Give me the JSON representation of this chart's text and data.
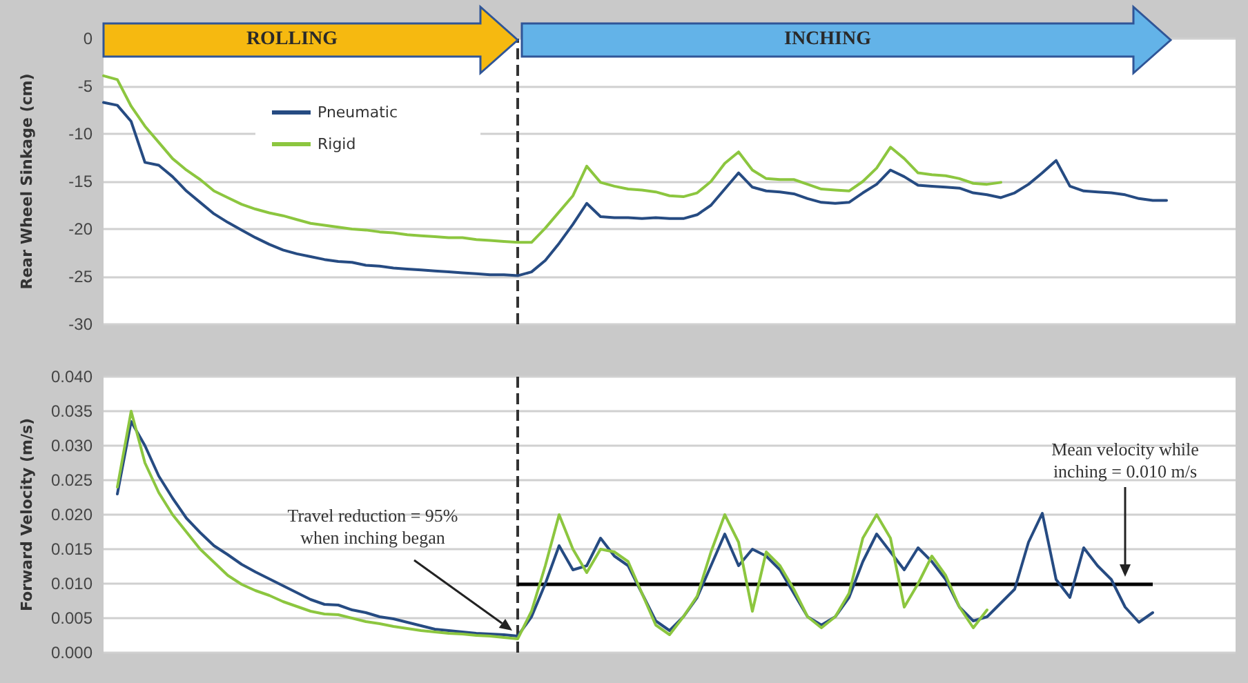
{
  "chart_data": [
    {
      "type": "line",
      "ylabel": "Rear Wheel Sinkage (cm)",
      "categories": [
        null,
        null,
        null,
        null,
        null,
        null,
        null,
        null,
        null,
        null,
        null,
        null,
        null,
        null,
        null,
        null,
        null,
        null,
        null,
        null,
        null,
        null,
        null,
        null,
        null,
        null,
        null,
        null,
        null,
        null,
        null,
        null,
        null,
        null,
        null,
        null,
        null,
        null,
        null,
        null,
        null,
        null,
        null,
        null,
        null,
        null,
        null,
        null,
        null,
        null,
        null,
        null,
        null,
        null,
        null,
        null,
        null,
        null,
        null,
        null,
        null,
        null,
        null,
        null,
        null,
        null,
        null,
        null,
        null,
        null,
        null,
        null,
        null,
        null,
        null,
        null,
        null,
        null,
        null,
        null,
        null,
        null,
        null
      ],
      "series": [
        {
          "name": "Pneumatic",
          "color": "#264b82",
          "values": [
            -6.7,
            -7.0,
            -8.7,
            -13.0,
            -13.3,
            -14.5,
            -16.0,
            -17.2,
            -18.4,
            -19.3,
            -20.1,
            -20.9,
            -21.6,
            -22.2,
            -22.6,
            -22.9,
            -23.2,
            -23.4,
            -23.5,
            -23.8,
            -23.9,
            -24.1,
            -24.2,
            -24.3,
            -24.4,
            -24.5,
            -24.6,
            -24.7,
            -24.8,
            -24.8,
            -24.9,
            -24.5,
            -23.3,
            -21.5,
            -19.5,
            -17.3,
            -18.7,
            -18.8,
            -18.8,
            -18.9,
            -18.8,
            -18.9,
            -18.9,
            -18.5,
            -17.5,
            -15.8,
            -14.1,
            -15.6,
            -16.0,
            -16.1,
            -16.3,
            -16.8,
            -17.2,
            -17.3,
            -17.2,
            -16.2,
            -15.3,
            -13.8,
            -14.5,
            -15.4,
            -15.5,
            -15.6,
            -15.7,
            -16.2,
            -16.4,
            -16.7,
            -16.2,
            -15.3,
            -14.1,
            -12.8,
            -15.5,
            -16.0,
            -16.1,
            -16.2,
            -16.4,
            -16.8,
            -17.0,
            -17.0,
            null,
            null,
            null,
            null,
            null
          ]
        },
        {
          "name": "Rigid",
          "color": "#8cc63f",
          "values": [
            -3.9,
            -4.3,
            -7.1,
            -9.2,
            -10.9,
            -12.6,
            -13.8,
            -14.8,
            -16.0,
            -16.7,
            -17.4,
            -17.9,
            -18.3,
            -18.6,
            -19.0,
            -19.4,
            -19.6,
            -19.8,
            -20.0,
            -20.1,
            -20.3,
            -20.4,
            -20.6,
            -20.7,
            -20.8,
            -20.9,
            -20.9,
            -21.1,
            -21.2,
            -21.3,
            -21.4,
            -21.4,
            -19.9,
            -18.2,
            -16.5,
            -13.4,
            -15.1,
            -15.5,
            -15.8,
            -15.9,
            -16.1,
            -16.5,
            -16.6,
            -16.2,
            -15.0,
            -13.1,
            -11.9,
            -13.8,
            -14.7,
            -14.8,
            -14.8,
            -15.3,
            -15.8,
            -15.9,
            -16.0,
            -15.0,
            -13.6,
            -11.4,
            -12.6,
            -14.1,
            -14.3,
            -14.4,
            -14.7,
            -15.2,
            -15.3,
            -15.1,
            null,
            null,
            null,
            null,
            null,
            null,
            null,
            null,
            null,
            null,
            null,
            null,
            null,
            null,
            null,
            null,
            null
          ]
        }
      ],
      "ylim": [
        -30,
        0
      ],
      "yticks": [
        -30,
        -25,
        -20,
        -15,
        -10,
        -5,
        0
      ],
      "grid": "y",
      "legend": "top left",
      "tick_labels": "y",
      "annotations": [
        "ROLLING",
        "INCHING"
      ]
    },
    {
      "type": "line",
      "ylabel": "Forward Velocity (m/s)",
      "categories": [
        null,
        null,
        null,
        null,
        null,
        null,
        null,
        null,
        null,
        null,
        null,
        null,
        null,
        null,
        null,
        null,
        null,
        null,
        null,
        null,
        null,
        null,
        null,
        null,
        null,
        null,
        null,
        null,
        null,
        null,
        null,
        null,
        null,
        null,
        null,
        null,
        null,
        null,
        null,
        null,
        null,
        null,
        null,
        null,
        null,
        null,
        null,
        null,
        null,
        null,
        null,
        null,
        null,
        null,
        null,
        null,
        null,
        null,
        null,
        null,
        null,
        null,
        null,
        null,
        null,
        null,
        null,
        null,
        null,
        null,
        null,
        null,
        null,
        null,
        null,
        null,
        null,
        null,
        null,
        null,
        null,
        null,
        null
      ],
      "series": [
        {
          "color": "#264b82",
          "values": [
            null,
            0.023,
            0.0335,
            0.03,
            0.0256,
            0.0224,
            0.0195,
            0.0174,
            0.0155,
            0.0142,
            0.0128,
            0.0117,
            0.0107,
            0.0097,
            0.0087,
            0.0077,
            0.007,
            0.0069,
            0.0062,
            0.0058,
            0.0052,
            0.0049,
            0.0044,
            0.0039,
            0.0034,
            0.0032,
            0.003,
            0.0028,
            0.0027,
            0.0026,
            0.0024,
            0.0052,
            0.01,
            0.0155,
            0.012,
            0.0126,
            0.0166,
            0.014,
            0.0126,
            0.0086,
            0.0046,
            0.0032,
            0.0052,
            0.008,
            0.0126,
            0.0172,
            0.0126,
            0.015,
            0.014,
            0.012,
            0.0086,
            0.0052,
            0.004,
            0.0052,
            0.008,
            0.0132,
            0.0172,
            0.0146,
            0.012,
            0.0152,
            0.0132,
            0.0106,
            0.0066,
            0.0046,
            0.0052,
            0.0072,
            0.0092,
            0.016,
            0.0202,
            0.0106,
            0.008,
            0.0152,
            0.0126,
            0.0106,
            0.0066,
            0.0044,
            0.0058,
            null,
            null,
            null,
            null,
            null,
            null
          ]
        },
        {
          "color": "#8cc63f",
          "values": [
            null,
            0.024,
            0.035,
            0.0275,
            0.0232,
            0.02,
            0.0175,
            0.015,
            0.0131,
            0.0112,
            0.0099,
            0.009,
            0.0083,
            0.0074,
            0.0067,
            0.006,
            0.0056,
            0.0055,
            0.005,
            0.0045,
            0.0042,
            0.0038,
            0.0035,
            0.0032,
            0.003,
            0.0028,
            0.0027,
            0.0025,
            0.0024,
            0.0022,
            0.002,
            0.006,
            0.0126,
            0.02,
            0.015,
            0.0116,
            0.015,
            0.0146,
            0.0132,
            0.0086,
            0.004,
            0.0026,
            0.0052,
            0.0082,
            0.0146,
            0.02,
            0.016,
            0.006,
            0.0146,
            0.0126,
            0.0092,
            0.0052,
            0.0036,
            0.0052,
            0.0086,
            0.0166,
            0.02,
            0.0166,
            0.0066,
            0.01,
            0.014,
            0.0112,
            0.0066,
            0.0036,
            0.0062,
            null,
            null,
            null,
            null,
            null,
            null,
            null,
            null,
            null,
            null,
            null,
            null,
            null,
            null,
            null,
            null,
            null,
            null
          ]
        }
      ],
      "ylim": [
        0,
        0.04
      ],
      "yticks": [
        {
          "value": 0,
          "label": "0.000"
        },
        {
          "value": 0.005,
          "label": "0.005"
        },
        {
          "value": 0.01,
          "label": "0.010"
        },
        {
          "value": 0.015,
          "label": "0.015"
        },
        {
          "value": 0.02,
          "label": "0.020"
        },
        {
          "value": 0.025,
          "label": "0.025"
        },
        {
          "value": 0.03,
          "label": "0.030"
        },
        {
          "value": 0.035,
          "label": "0.035"
        },
        {
          "value": 0.04,
          "label": "0.040"
        }
      ],
      "grid": "y",
      "tick_labels": "y",
      "ref_lines": [
        {
          "axis": "y",
          "value": 0.01,
          "label": null,
          "color": "#000000"
        }
      ],
      "annotations": [
        "Travel reduction = 95% when inching began",
        "Mean velocity while inching = 0.010 m/s"
      ]
    }
  ]
}
